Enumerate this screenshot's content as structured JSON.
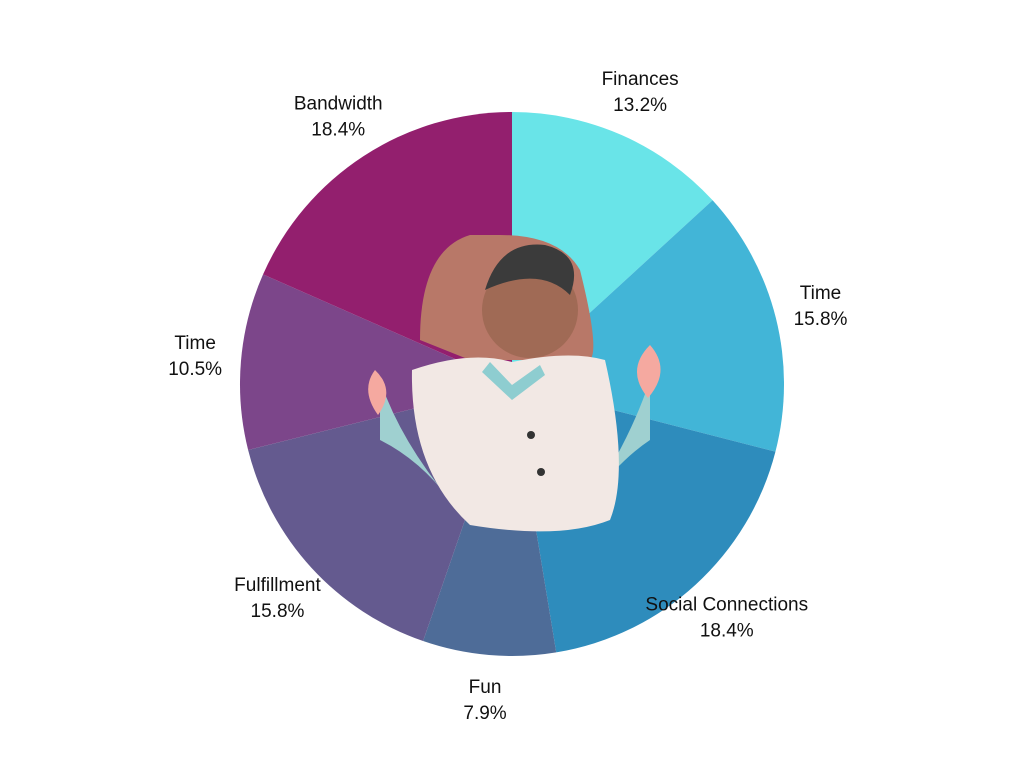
{
  "chart_data": {
    "type": "pie",
    "categories": [
      "Finances",
      "Time",
      "Social Connections",
      "Fun",
      "Fulfillment",
      "Time",
      "Bandwidth"
    ],
    "values": [
      13.2,
      15.8,
      18.4,
      7.9,
      15.8,
      10.5,
      18.4
    ],
    "value_labels": [
      "13.2%",
      "15.8%",
      "18.4%",
      "7.9%",
      "15.8%",
      "10.5%",
      "18.4%"
    ],
    "colors": [
      "#69e4e8",
      "#42b5d7",
      "#2e8cbc",
      "#4e6c98",
      "#645a8f",
      "#7c468a",
      "#931f6e"
    ]
  }
}
